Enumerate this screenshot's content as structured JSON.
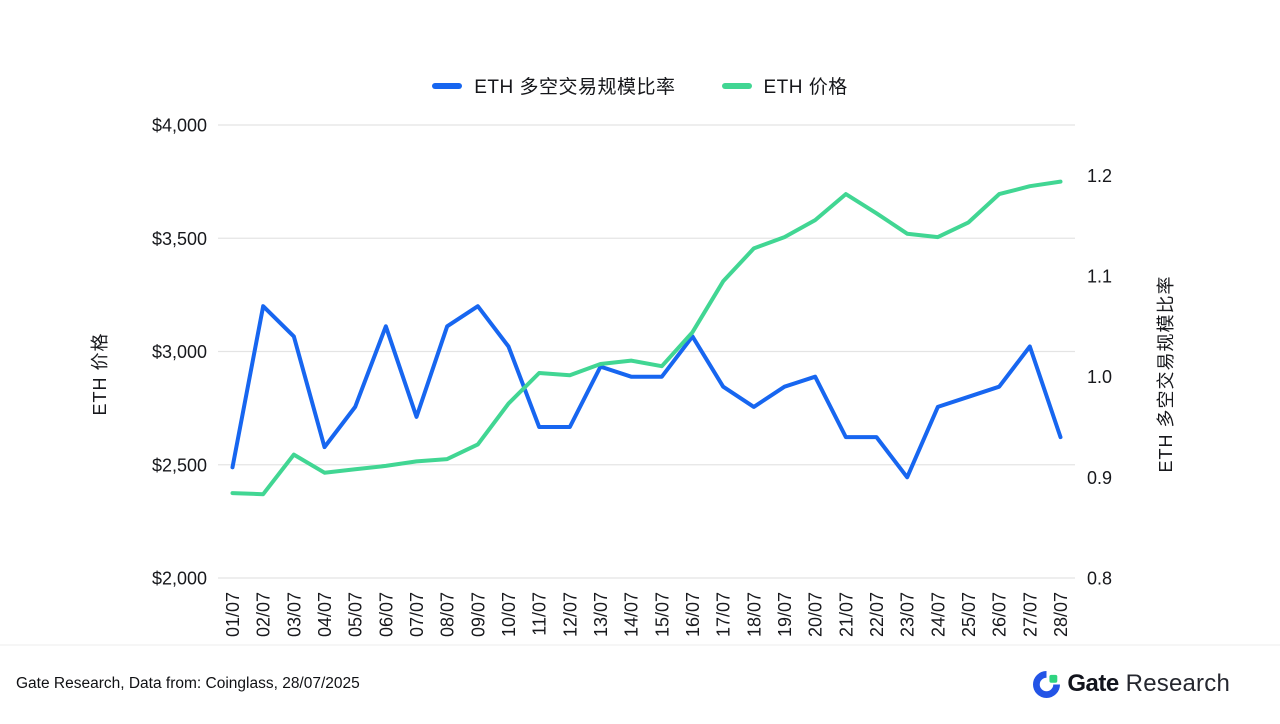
{
  "legend": {
    "items": [
      {
        "label": "ETH 多空交易规模比率",
        "color": "#1766F0"
      },
      {
        "label": "ETH  价格",
        "color": "#41D693"
      }
    ]
  },
  "chart_data": {
    "type": "line",
    "title": "",
    "categories": [
      "01/07",
      "02/07",
      "03/07",
      "04/07",
      "05/07",
      "06/07",
      "07/07",
      "08/07",
      "09/07",
      "10/07",
      "11/07",
      "12/07",
      "13/07",
      "14/07",
      "15/07",
      "16/07",
      "17/07",
      "18/07",
      "19/07",
      "20/07",
      "21/07",
      "22/07",
      "23/07",
      "24/07",
      "25/07",
      "26/07",
      "27/07",
      "28/07"
    ],
    "series": [
      {
        "name": "ETH 多空交易规模比率",
        "axis": "right",
        "color": "#1766F0",
        "values": [
          0.91,
          1.07,
          1.04,
          0.93,
          0.97,
          1.05,
          0.96,
          1.05,
          1.07,
          1.03,
          0.95,
          0.95,
          1.01,
          1.0,
          1.0,
          1.04,
          0.99,
          0.97,
          0.99,
          1.0,
          0.94,
          0.94,
          0.9,
          0.97,
          0.98,
          0.99,
          1.03,
          0.94
        ]
      },
      {
        "name": "ETH 价格",
        "axis": "left",
        "color": "#41D693",
        "values": [
          2375,
          2370,
          2545,
          2465,
          2480,
          2495,
          2515,
          2525,
          2590,
          2770,
          2905,
          2895,
          2945,
          2960,
          2935,
          3085,
          3310,
          3455,
          3505,
          3580,
          3695,
          3610,
          3520,
          3505,
          3570,
          3695,
          3730,
          3750
        ]
      }
    ],
    "left_axis": {
      "title": "ETH 价格",
      "min": 2000,
      "max": 4000,
      "tick_values": [
        4000,
        3500,
        3000,
        2500,
        2000
      ],
      "tick_labels": [
        "$4,000",
        "$3,500",
        "$3,000",
        "$2,500",
        "$2,000"
      ]
    },
    "right_axis": {
      "title": "ETH 多空交易规模比率",
      "min": 0.8,
      "max": 1.25,
      "tick_values": [
        1.2,
        1.1,
        1.0,
        0.9,
        0.8
      ],
      "tick_labels": [
        "1.2",
        "1.1",
        "1.0",
        "0.9",
        "0.8"
      ]
    },
    "grid": "horizontal",
    "legend_position": "top"
  },
  "footer": {
    "text": "Gate Research, Data from: Coinglass, 28/07/2025"
  },
  "logo": {
    "brand": "Gate",
    "suffix": "Research",
    "mark_blue": "#2354E6",
    "mark_green": "#2FD480"
  }
}
